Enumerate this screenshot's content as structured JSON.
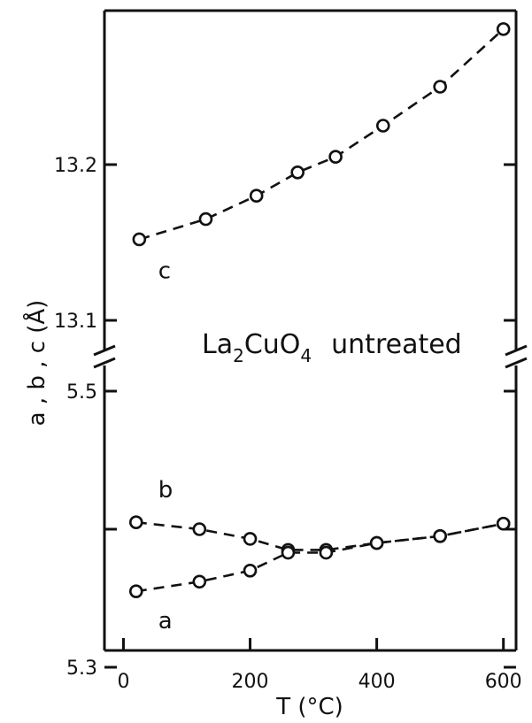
{
  "chart_data": {
    "type": "scatter",
    "title": "",
    "annotation": {
      "formula_base": "La",
      "sub1": "2",
      "formula_mid": "CuO",
      "sub2": "4",
      "word": "untreated"
    },
    "xlabel": "T (°C)",
    "ylabel": "a , b , c (Å)",
    "xlim": [
      -30,
      620
    ],
    "xticks": [
      0,
      200,
      400,
      600
    ],
    "xtick_labels": [
      "0",
      "200",
      "400",
      "600"
    ],
    "broken_y_axis": true,
    "upper_panel": {
      "ylim": [
        13.0,
        13.3
      ],
      "yticks": [
        13.1,
        13.2
      ],
      "ytick_labels": [
        "13.1",
        "13.2"
      ]
    },
    "lower_panel": {
      "ylim": [
        5.2,
        5.6
      ],
      "yticks": [
        5.3,
        5.4,
        5.5
      ],
      "ytick_labels": [
        "5.3",
        "",
        "5.5"
      ]
    },
    "series": [
      {
        "name": "c",
        "panel": "upper",
        "x": [
          25,
          130,
          210,
          275,
          335,
          410,
          500,
          600
        ],
        "y": [
          13.152,
          13.165,
          13.18,
          13.195,
          13.205,
          13.225,
          13.25,
          13.287
        ]
      },
      {
        "name": "b",
        "panel": "lower",
        "x": [
          20,
          120,
          200,
          260,
          320,
          400,
          500,
          600
        ],
        "y": [
          5.405,
          5.4,
          5.393,
          5.385,
          5.385,
          5.39,
          5.395,
          5.404
        ]
      },
      {
        "name": "a",
        "panel": "lower",
        "x": [
          20,
          120,
          200,
          260,
          320,
          400,
          500,
          600
        ],
        "y": [
          5.355,
          5.362,
          5.37,
          5.383,
          5.383,
          5.39,
          5.395,
          5.404
        ]
      }
    ]
  }
}
